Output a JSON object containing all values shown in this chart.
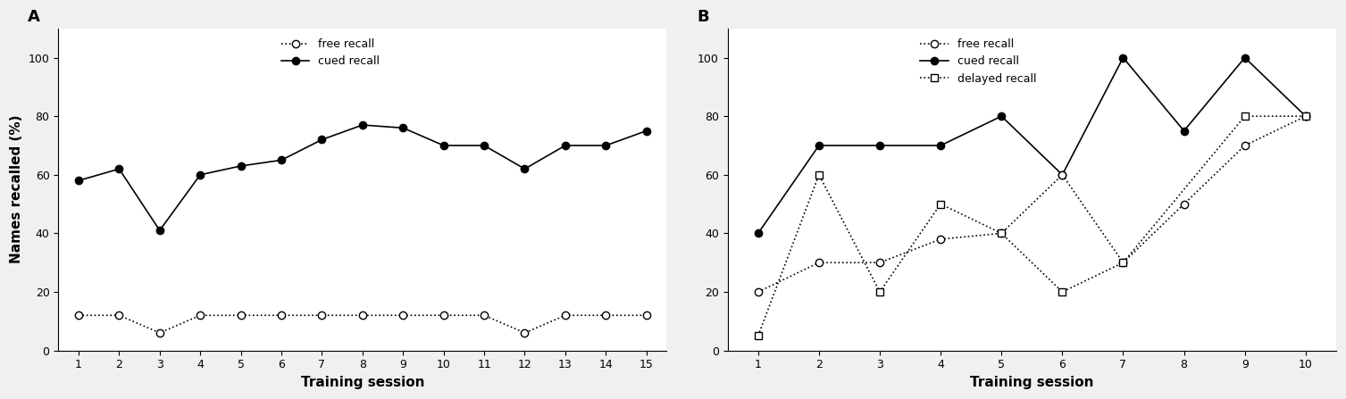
{
  "panel_A": {
    "sessions": [
      1,
      2,
      3,
      4,
      5,
      6,
      7,
      8,
      9,
      10,
      11,
      12,
      13,
      14,
      15
    ],
    "cued_recall": [
      58,
      62,
      41,
      60,
      63,
      65,
      72,
      77,
      76,
      70,
      70,
      62,
      70,
      70,
      75
    ],
    "free_recall": [
      12,
      12,
      6,
      12,
      12,
      12,
      12,
      12,
      12,
      12,
      12,
      6,
      12,
      12,
      12
    ]
  },
  "panel_B": {
    "sessions_free": [
      1,
      2,
      3,
      4,
      5,
      6,
      7,
      8,
      9,
      10
    ],
    "sessions_cued": [
      1,
      2,
      3,
      4,
      5,
      6,
      7,
      8,
      9,
      10
    ],
    "sessions_delayed": [
      1,
      2,
      3,
      4,
      5,
      6,
      7,
      9,
      10
    ],
    "free_recall": [
      20,
      30,
      30,
      38,
      40,
      60,
      30,
      50,
      70,
      80
    ],
    "cued_recall": [
      40,
      70,
      70,
      70,
      80,
      60,
      100,
      75,
      100,
      80
    ],
    "delayed_recall": [
      5,
      60,
      20,
      50,
      40,
      20,
      30,
      80,
      80
    ]
  },
  "ylim": [
    0,
    110
  ],
  "yticks": [
    0,
    20,
    40,
    60,
    80,
    100
  ],
  "xlabel": "Training session",
  "ylabel": "Names recalled (%)",
  "label_A": "A",
  "label_B": "B",
  "bg_color": "#ffffff",
  "outer_bg": "#f0f0f0"
}
